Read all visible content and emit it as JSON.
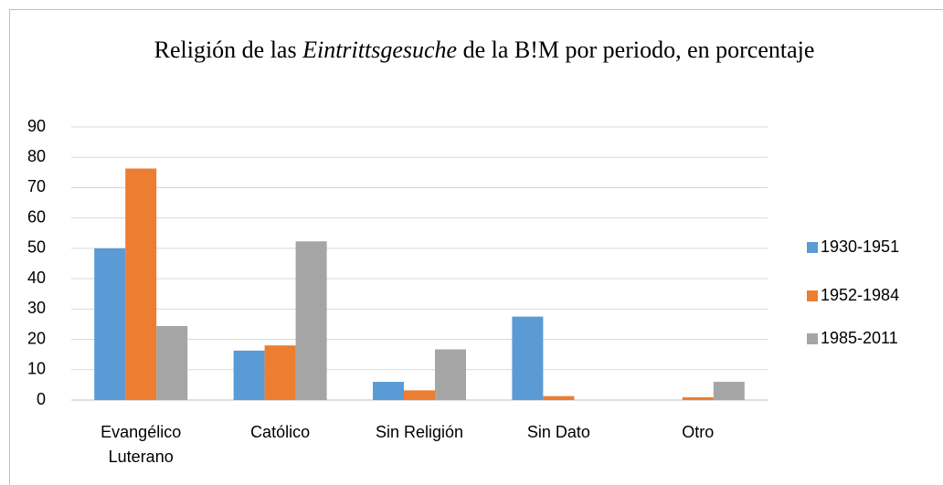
{
  "chart_data": {
    "type": "bar",
    "title": [
      {
        "text": "Religión de las ",
        "italic": false
      },
      {
        "text": "Eintrittsgesuche",
        "italic": true
      },
      {
        "text": " de la B!M por periodo, en porcentaje",
        "italic": false
      }
    ],
    "categories": [
      "Evangélico Luterano",
      "Católico",
      "Sin Religión",
      "Sin Dato",
      "Otro"
    ],
    "series": [
      {
        "name": "1930-1951",
        "color": "#5b9bd5",
        "values": [
          50,
          16.3,
          6,
          27.5,
          0
        ]
      },
      {
        "name": "1952-1984",
        "color": "#ed7d31",
        "values": [
          76.3,
          18,
          3.2,
          1.3,
          0.9
        ]
      },
      {
        "name": "1985-2011",
        "color": "#a5a5a5",
        "values": [
          24.4,
          52.3,
          16.7,
          0,
          6
        ]
      }
    ],
    "ylim": [
      0,
      90
    ],
    "yticks": [
      0,
      10,
      20,
      30,
      40,
      50,
      60,
      70,
      80,
      90
    ],
    "grid": true,
    "legend": "right"
  }
}
